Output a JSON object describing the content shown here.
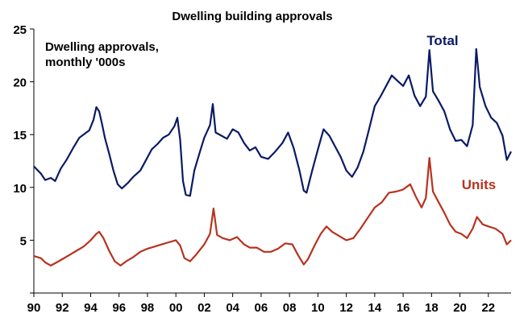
{
  "chart_data": {
    "type": "line",
    "title": "Dwelling building approvals",
    "annotation": [
      "Dwelling approvals,",
      "monthly '000s"
    ],
    "xlim": [
      1990,
      2023.6
    ],
    "ylim": [
      0,
      25
    ],
    "y_ticks": [
      5,
      10,
      15,
      20,
      25
    ],
    "x_ticks": [
      1990,
      1992,
      1994,
      1996,
      1998,
      2000,
      2002,
      2004,
      2006,
      2008,
      2010,
      2012,
      2014,
      2016,
      2018,
      2020,
      2022
    ],
    "x_tick_labels": [
      "90",
      "92",
      "94",
      "96",
      "98",
      "00",
      "02",
      "04",
      "06",
      "08",
      "10",
      "12",
      "14",
      "16",
      "18",
      "20",
      "22"
    ],
    "grid": false,
    "series": [
      {
        "name": "Total",
        "color": "#0a1a66",
        "points": [
          [
            1990.0,
            12.0
          ],
          [
            1990.5,
            11.3
          ],
          [
            1990.8,
            10.7
          ],
          [
            1991.2,
            10.9
          ],
          [
            1991.5,
            10.6
          ],
          [
            1991.9,
            11.8
          ],
          [
            1992.3,
            12.6
          ],
          [
            1992.8,
            13.8
          ],
          [
            1993.2,
            14.7
          ],
          [
            1993.6,
            15.1
          ],
          [
            1993.9,
            15.4
          ],
          [
            1994.2,
            16.4
          ],
          [
            1994.4,
            17.6
          ],
          [
            1994.6,
            17.2
          ],
          [
            1994.8,
            16.0
          ],
          [
            1995.0,
            14.7
          ],
          [
            1995.3,
            13.2
          ],
          [
            1995.6,
            11.6
          ],
          [
            1995.9,
            10.3
          ],
          [
            1996.2,
            9.9
          ],
          [
            1996.6,
            10.4
          ],
          [
            1997.0,
            11.0
          ],
          [
            1997.5,
            11.6
          ],
          [
            1997.9,
            12.6
          ],
          [
            1998.3,
            13.6
          ],
          [
            1998.7,
            14.1
          ],
          [
            1999.1,
            14.7
          ],
          [
            1999.5,
            15.0
          ],
          [
            1999.9,
            15.8
          ],
          [
            2000.1,
            16.6
          ],
          [
            2000.3,
            14.5
          ],
          [
            2000.5,
            10.6
          ],
          [
            2000.7,
            9.3
          ],
          [
            2001.0,
            9.2
          ],
          [
            2001.3,
            11.6
          ],
          [
            2001.7,
            13.4
          ],
          [
            2002.0,
            14.7
          ],
          [
            2002.4,
            15.9
          ],
          [
            2002.6,
            17.9
          ],
          [
            2002.8,
            15.2
          ],
          [
            2003.2,
            14.9
          ],
          [
            2003.6,
            14.6
          ],
          [
            2004.0,
            15.5
          ],
          [
            2004.4,
            15.2
          ],
          [
            2004.8,
            14.2
          ],
          [
            2005.2,
            13.5
          ],
          [
            2005.6,
            13.8
          ],
          [
            2006.0,
            12.9
          ],
          [
            2006.5,
            12.7
          ],
          [
            2007.0,
            13.4
          ],
          [
            2007.5,
            14.2
          ],
          [
            2007.9,
            15.2
          ],
          [
            2008.3,
            13.7
          ],
          [
            2008.7,
            11.6
          ],
          [
            2009.0,
            9.7
          ],
          [
            2009.2,
            9.5
          ],
          [
            2009.6,
            11.6
          ],
          [
            2010.0,
            13.6
          ],
          [
            2010.4,
            15.5
          ],
          [
            2010.8,
            14.9
          ],
          [
            2011.2,
            13.9
          ],
          [
            2011.6,
            12.9
          ],
          [
            2012.0,
            11.6
          ],
          [
            2012.4,
            11.0
          ],
          [
            2012.8,
            11.9
          ],
          [
            2013.2,
            13.4
          ],
          [
            2013.6,
            15.5
          ],
          [
            2014.0,
            17.7
          ],
          [
            2014.4,
            18.6
          ],
          [
            2014.8,
            19.6
          ],
          [
            2015.2,
            20.6
          ],
          [
            2015.6,
            20.1
          ],
          [
            2016.0,
            19.6
          ],
          [
            2016.4,
            20.6
          ],
          [
            2016.8,
            18.7
          ],
          [
            2017.2,
            17.7
          ],
          [
            2017.6,
            18.6
          ],
          [
            2017.85,
            23.0
          ],
          [
            2018.1,
            19.1
          ],
          [
            2018.5,
            18.2
          ],
          [
            2018.9,
            17.2
          ],
          [
            2019.3,
            15.5
          ],
          [
            2019.7,
            14.4
          ],
          [
            2020.1,
            14.5
          ],
          [
            2020.5,
            13.9
          ],
          [
            2020.9,
            15.9
          ],
          [
            2021.15,
            23.1
          ],
          [
            2021.4,
            19.5
          ],
          [
            2021.8,
            17.7
          ],
          [
            2022.2,
            16.6
          ],
          [
            2022.6,
            16.1
          ],
          [
            2023.0,
            14.9
          ],
          [
            2023.3,
            12.6
          ],
          [
            2023.6,
            13.4
          ]
        ]
      },
      {
        "name": "Units",
        "color": "#b8321e",
        "points": [
          [
            1990.0,
            3.5
          ],
          [
            1990.5,
            3.3
          ],
          [
            1990.8,
            2.9
          ],
          [
            1991.2,
            2.6
          ],
          [
            1991.6,
            2.9
          ],
          [
            1992.0,
            3.2
          ],
          [
            1992.5,
            3.6
          ],
          [
            1993.0,
            4.0
          ],
          [
            1993.5,
            4.4
          ],
          [
            1994.0,
            5.0
          ],
          [
            1994.4,
            5.6
          ],
          [
            1994.6,
            5.8
          ],
          [
            1994.9,
            5.2
          ],
          [
            1995.3,
            4.0
          ],
          [
            1995.7,
            3.0
          ],
          [
            1996.1,
            2.6
          ],
          [
            1996.5,
            3.0
          ],
          [
            1997.0,
            3.4
          ],
          [
            1997.5,
            3.9
          ],
          [
            1998.0,
            4.2
          ],
          [
            1998.5,
            4.4
          ],
          [
            1999.0,
            4.6
          ],
          [
            1999.5,
            4.8
          ],
          [
            2000.0,
            5.0
          ],
          [
            2000.3,
            4.5
          ],
          [
            2000.6,
            3.3
          ],
          [
            2001.0,
            3.0
          ],
          [
            2001.4,
            3.6
          ],
          [
            2002.0,
            4.6
          ],
          [
            2002.4,
            5.6
          ],
          [
            2002.65,
            8.0
          ],
          [
            2002.9,
            5.5
          ],
          [
            2003.3,
            5.2
          ],
          [
            2003.8,
            5.0
          ],
          [
            2004.3,
            5.3
          ],
          [
            2004.8,
            4.6
          ],
          [
            2005.2,
            4.3
          ],
          [
            2005.7,
            4.3
          ],
          [
            2006.2,
            3.9
          ],
          [
            2006.7,
            3.9
          ],
          [
            2007.2,
            4.2
          ],
          [
            2007.7,
            4.7
          ],
          [
            2008.2,
            4.6
          ],
          [
            2008.6,
            3.6
          ],
          [
            2009.0,
            2.7
          ],
          [
            2009.3,
            3.2
          ],
          [
            2009.8,
            4.6
          ],
          [
            2010.2,
            5.6
          ],
          [
            2010.6,
            6.3
          ],
          [
            2011.0,
            5.8
          ],
          [
            2011.5,
            5.4
          ],
          [
            2012.0,
            5.0
          ],
          [
            2012.5,
            5.2
          ],
          [
            2013.0,
            6.1
          ],
          [
            2013.5,
            7.1
          ],
          [
            2014.0,
            8.1
          ],
          [
            2014.5,
            8.6
          ],
          [
            2015.0,
            9.5
          ],
          [
            2015.5,
            9.6
          ],
          [
            2016.0,
            9.8
          ],
          [
            2016.5,
            10.3
          ],
          [
            2016.9,
            9.1
          ],
          [
            2017.3,
            8.1
          ],
          [
            2017.6,
            9.0
          ],
          [
            2017.85,
            12.8
          ],
          [
            2018.1,
            9.6
          ],
          [
            2018.5,
            8.6
          ],
          [
            2018.9,
            7.6
          ],
          [
            2019.3,
            6.5
          ],
          [
            2019.7,
            5.8
          ],
          [
            2020.1,
            5.6
          ],
          [
            2020.5,
            5.2
          ],
          [
            2020.9,
            6.1
          ],
          [
            2021.2,
            7.2
          ],
          [
            2021.6,
            6.5
          ],
          [
            2022.0,
            6.3
          ],
          [
            2022.5,
            6.1
          ],
          [
            2023.0,
            5.6
          ],
          [
            2023.3,
            4.6
          ],
          [
            2023.6,
            5.0
          ]
        ]
      }
    ]
  }
}
